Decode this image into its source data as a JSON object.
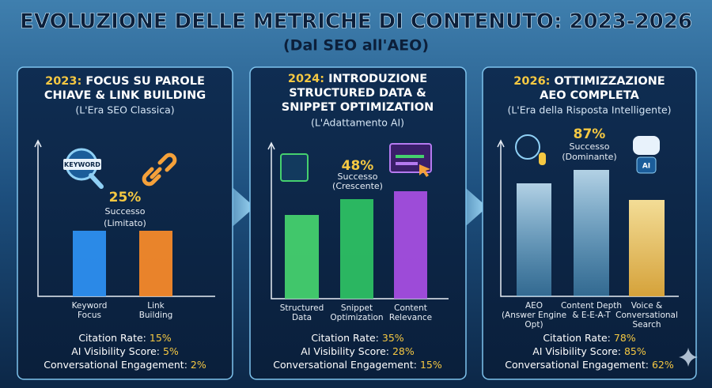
{
  "title": "EVOLUZIONE DELLE METRICHE DI CONTENUTO: 2023-2026",
  "subtitle": "(Dal SEO all'AEO)",
  "panels": [
    {
      "year": "2023:",
      "heading": [
        "FOCUS SU PAROLE",
        "CHIAVE & LINK BUILDING"
      ],
      "era": "(L'Era SEO Classica)",
      "icon_label": "KEYWORD",
      "score": {
        "value": "25%",
        "label": "Successo",
        "note": "(Limitato)"
      },
      "bars": [
        [
          "Keyword",
          "Focus"
        ],
        [
          "Link",
          "Building"
        ]
      ],
      "metrics": [
        {
          "label": "Citation Rate:",
          "value": "15%"
        },
        {
          "label": "AI Visibility Score:",
          "value": "5%"
        },
        {
          "label": "Conversational Engagement:",
          "value": "2%"
        }
      ]
    },
    {
      "year": "2024:",
      "heading": [
        "INTRODUZIONE",
        "STRUCTURED DATA &",
        "SNIPPET OPTIMIZATION"
      ],
      "era": "(L'Adattamento AI)",
      "score": {
        "value": "48%",
        "label": "Successo",
        "note": "(Crescente)"
      },
      "bars": [
        [
          "Structured",
          "Data"
        ],
        [
          "Snippet",
          "Optimization"
        ],
        [
          "Content",
          "Relevance"
        ]
      ],
      "metrics": [
        {
          "label": "Citation Rate:",
          "value": "35%"
        },
        {
          "label": "AI Visibility Score:",
          "value": "28%"
        },
        {
          "label": "Conversational Engagement:",
          "value": "15%"
        }
      ]
    },
    {
      "year": "2026:",
      "heading": [
        "OTTIMIZZAZIONE",
        "AEO COMPLETA"
      ],
      "era": "(L'Era della Risposta Intelligente)",
      "icon_label": "AI",
      "score": {
        "value": "87%",
        "label": "Successo",
        "note": "(Dominante)"
      },
      "bars": [
        [
          "AEO",
          "(Answer Engine",
          "Opt)"
        ],
        [
          "Content Depth",
          "& E-E-A-T"
        ],
        [
          "Voice &",
          "Conversational",
          "Search"
        ]
      ],
      "metrics": [
        {
          "label": "Citation Rate:",
          "value": "78%"
        },
        {
          "label": "AI Visibility Score:",
          "value": "85%"
        },
        {
          "label": "Conversational Engagement:",
          "value": "62%"
        }
      ]
    }
  ]
}
